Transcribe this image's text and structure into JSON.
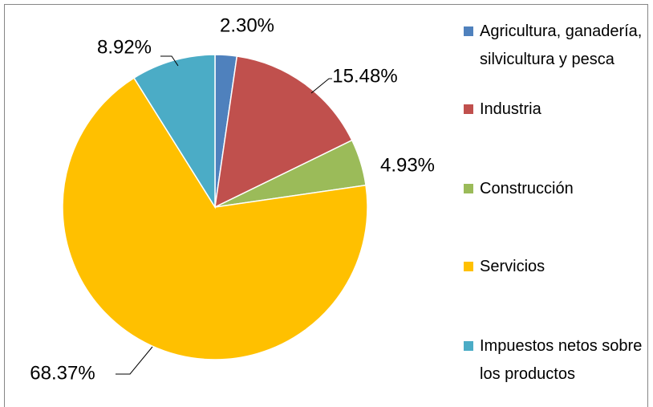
{
  "chart_data": {
    "type": "pie",
    "categories": [
      "Agricultura, ganadería, silvicultura y pesca",
      "Industria",
      "Construcción",
      "Servicios",
      "Impuestos netos sobre los productos"
    ],
    "values": [
      2.3,
      15.48,
      4.93,
      68.37,
      8.92
    ],
    "value_labels": [
      "2.30%",
      "15.48%",
      "4.93%",
      "68.37%",
      "8.92%"
    ],
    "colors": [
      "#4f81bd",
      "#c0504d",
      "#9bbb59",
      "#ffc000",
      "#4bacc6"
    ]
  }
}
